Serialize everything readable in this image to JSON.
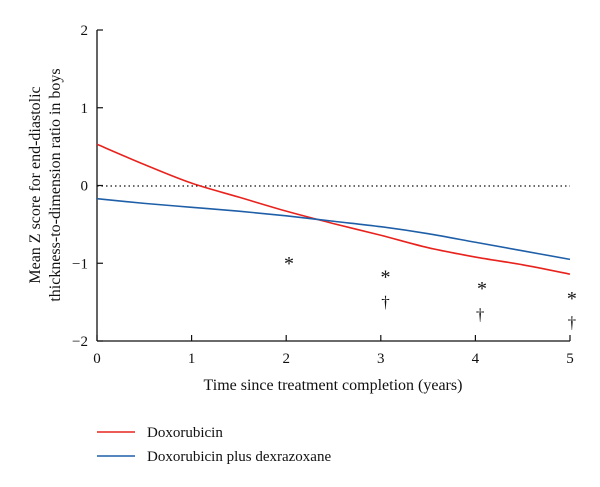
{
  "chart_data": {
    "type": "line",
    "xlabel": "Time since treatment completion (years)",
    "ylabel_line1": "Mean Z score for end-diastolic",
    "ylabel_line2": "thickness-to-dimension ratio in boys",
    "xlim": [
      0,
      5
    ],
    "ylim": [
      -2,
      2
    ],
    "x_ticks": [
      "0",
      "1",
      "2",
      "3",
      "4",
      "5"
    ],
    "y_ticks": [
      "−2",
      "−1",
      "0",
      "1",
      "2"
    ],
    "reference_line_y": 0,
    "grid": false,
    "legend_position": "bottom-left",
    "series": [
      {
        "name": "Doxorubicin",
        "color": "#e8231e",
        "x": [
          0,
          0.5,
          1,
          1.5,
          2,
          2.5,
          3,
          3.5,
          4,
          4.5,
          5
        ],
        "y": [
          0.53,
          0.27,
          0.03,
          -0.15,
          -0.33,
          -0.49,
          -0.64,
          -0.8,
          -0.92,
          -1.02,
          -1.14
        ]
      },
      {
        "name": "Doxorubicin plus dexrazoxane",
        "color": "#1f5fa8",
        "x": [
          0,
          0.5,
          1,
          1.5,
          2,
          2.5,
          3,
          3.5,
          4,
          4.5,
          5
        ],
        "y": [
          -0.17,
          -0.23,
          -0.28,
          -0.33,
          -0.39,
          -0.46,
          -0.53,
          -0.62,
          -0.73,
          -0.84,
          -0.95
        ]
      }
    ],
    "annotations": [
      {
        "text": "*",
        "x": 2.03,
        "y": -1.03
      },
      {
        "text": "*",
        "x": 3.05,
        "y": -1.2
      },
      {
        "text": "†",
        "x": 3.05,
        "y": -1.52
      },
      {
        "text": "*",
        "x": 4.07,
        "y": -1.35
      },
      {
        "text": "†",
        "x": 4.05,
        "y": -1.68
      },
      {
        "text": "*",
        "x": 5.02,
        "y": -1.48
      },
      {
        "text": "†",
        "x": 5.02,
        "y": -1.78
      }
    ]
  }
}
